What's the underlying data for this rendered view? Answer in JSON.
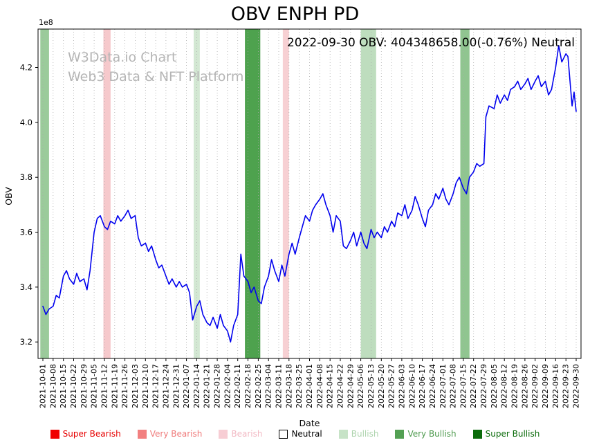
{
  "header": {
    "title": "OBV ENPH PD",
    "annotation": "2022-09-30 OBV: 404348658.00(-0.76%) Neutral"
  },
  "watermark": {
    "line1": "W3Data.io Chart",
    "line2": "Web3 Data & NFT Platform",
    "color": "#b5b5b5"
  },
  "axes": {
    "ylabel": "OBV",
    "xlabel": "Date",
    "offset_label": "1e8"
  },
  "chart_data": {
    "type": "line",
    "title": "OBV ENPH PD",
    "annotation": "2022-09-30 OBV: 404348658.00(-0.76%) Neutral",
    "xlabel": "Date",
    "ylabel": "OBV",
    "y_unit_multiplier": "1e8",
    "ylim": [
      3.14,
      4.34
    ],
    "y_ticks": [
      3.2,
      3.4,
      3.6,
      3.8,
      4.0,
      4.2
    ],
    "grid": "vertical-dotted",
    "line_color": "#0000ee",
    "x_tick_labels": [
      "2021-10-01",
      "2021-10-08",
      "2021-10-15",
      "2021-10-22",
      "2021-10-29",
      "2021-11-05",
      "2021-11-12",
      "2021-11-19",
      "2021-11-26",
      "2021-12-03",
      "2021-12-10",
      "2021-12-17",
      "2021-12-24",
      "2021-12-31",
      "2022-01-07",
      "2022-01-14",
      "2022-01-21",
      "2022-01-28",
      "2022-02-04",
      "2022-02-11",
      "2022-02-18",
      "2022-02-25",
      "2022-03-04",
      "2022-03-11",
      "2022-03-18",
      "2022-03-25",
      "2022-04-01",
      "2022-04-08",
      "2022-04-15",
      "2022-04-22",
      "2022-04-29",
      "2022-05-06",
      "2022-05-13",
      "2022-05-20",
      "2022-05-27",
      "2022-06-03",
      "2022-06-10",
      "2022-06-17",
      "2022-06-24",
      "2022-07-01",
      "2022-07-08",
      "2022-07-15",
      "2022-07-22",
      "2022-07-29",
      "2022-08-05",
      "2022-08-12",
      "2022-08-19",
      "2022-08-26",
      "2022-09-02",
      "2022-09-09",
      "2022-09-16",
      "2022-09-23",
      "2022-09-30"
    ],
    "series": [
      {
        "name": "OBV",
        "points": [
          [
            0.0,
            3.33
          ],
          [
            0.3,
            3.3
          ],
          [
            0.6,
            3.32
          ],
          [
            1.0,
            3.33
          ],
          [
            1.3,
            3.37
          ],
          [
            1.6,
            3.36
          ],
          [
            2.0,
            3.44
          ],
          [
            2.3,
            3.46
          ],
          [
            2.6,
            3.43
          ],
          [
            3.0,
            3.41
          ],
          [
            3.3,
            3.45
          ],
          [
            3.6,
            3.42
          ],
          [
            4.0,
            3.43
          ],
          [
            4.3,
            3.39
          ],
          [
            4.6,
            3.46
          ],
          [
            5.0,
            3.6
          ],
          [
            5.3,
            3.65
          ],
          [
            5.6,
            3.66
          ],
          [
            6.0,
            3.62
          ],
          [
            6.3,
            3.61
          ],
          [
            6.6,
            3.64
          ],
          [
            7.0,
            3.63
          ],
          [
            7.3,
            3.66
          ],
          [
            7.6,
            3.64
          ],
          [
            8.0,
            3.66
          ],
          [
            8.3,
            3.68
          ],
          [
            8.6,
            3.65
          ],
          [
            9.0,
            3.66
          ],
          [
            9.3,
            3.58
          ],
          [
            9.6,
            3.55
          ],
          [
            10.0,
            3.56
          ],
          [
            10.3,
            3.53
          ],
          [
            10.6,
            3.55
          ],
          [
            11.0,
            3.5
          ],
          [
            11.3,
            3.47
          ],
          [
            11.6,
            3.48
          ],
          [
            12.0,
            3.44
          ],
          [
            12.3,
            3.41
          ],
          [
            12.6,
            3.43
          ],
          [
            13.0,
            3.4
          ],
          [
            13.3,
            3.42
          ],
          [
            13.6,
            3.4
          ],
          [
            14.0,
            3.41
          ],
          [
            14.3,
            3.38
          ],
          [
            14.6,
            3.28
          ],
          [
            15.0,
            3.33
          ],
          [
            15.3,
            3.35
          ],
          [
            15.6,
            3.3
          ],
          [
            16.0,
            3.27
          ],
          [
            16.3,
            3.26
          ],
          [
            16.6,
            3.29
          ],
          [
            17.0,
            3.25
          ],
          [
            17.3,
            3.3
          ],
          [
            17.6,
            3.26
          ],
          [
            18.0,
            3.24
          ],
          [
            18.3,
            3.2
          ],
          [
            18.6,
            3.26
          ],
          [
            19.0,
            3.3
          ],
          [
            19.3,
            3.52
          ],
          [
            19.6,
            3.44
          ],
          [
            20.0,
            3.42
          ],
          [
            20.3,
            3.38
          ],
          [
            20.6,
            3.4
          ],
          [
            21.0,
            3.35
          ],
          [
            21.3,
            3.34
          ],
          [
            21.6,
            3.4
          ],
          [
            22.0,
            3.44
          ],
          [
            22.3,
            3.5
          ],
          [
            22.6,
            3.46
          ],
          [
            23.0,
            3.42
          ],
          [
            23.3,
            3.48
          ],
          [
            23.6,
            3.44
          ],
          [
            24.0,
            3.52
          ],
          [
            24.3,
            3.56
          ],
          [
            24.6,
            3.52
          ],
          [
            25.0,
            3.58
          ],
          [
            25.3,
            3.62
          ],
          [
            25.6,
            3.66
          ],
          [
            26.0,
            3.64
          ],
          [
            26.3,
            3.68
          ],
          [
            26.6,
            3.7
          ],
          [
            27.0,
            3.72
          ],
          [
            27.3,
            3.74
          ],
          [
            27.6,
            3.7
          ],
          [
            28.0,
            3.66
          ],
          [
            28.3,
            3.6
          ],
          [
            28.6,
            3.66
          ],
          [
            29.0,
            3.64
          ],
          [
            29.3,
            3.55
          ],
          [
            29.6,
            3.54
          ],
          [
            30.0,
            3.57
          ],
          [
            30.3,
            3.6
          ],
          [
            30.6,
            3.55
          ],
          [
            31.0,
            3.6
          ],
          [
            31.3,
            3.56
          ],
          [
            31.6,
            3.54
          ],
          [
            32.0,
            3.61
          ],
          [
            32.3,
            3.58
          ],
          [
            32.6,
            3.6
          ],
          [
            33.0,
            3.58
          ],
          [
            33.3,
            3.62
          ],
          [
            33.6,
            3.6
          ],
          [
            34.0,
            3.64
          ],
          [
            34.3,
            3.62
          ],
          [
            34.6,
            3.67
          ],
          [
            35.0,
            3.66
          ],
          [
            35.3,
            3.7
          ],
          [
            35.6,
            3.65
          ],
          [
            36.0,
            3.68
          ],
          [
            36.3,
            3.73
          ],
          [
            36.6,
            3.7
          ],
          [
            37.0,
            3.65
          ],
          [
            37.3,
            3.62
          ],
          [
            37.6,
            3.68
          ],
          [
            38.0,
            3.7
          ],
          [
            38.3,
            3.74
          ],
          [
            38.6,
            3.72
          ],
          [
            39.0,
            3.76
          ],
          [
            39.3,
            3.72
          ],
          [
            39.6,
            3.7
          ],
          [
            40.0,
            3.74
          ],
          [
            40.3,
            3.78
          ],
          [
            40.6,
            3.8
          ],
          [
            41.0,
            3.76
          ],
          [
            41.3,
            3.74
          ],
          [
            41.6,
            3.8
          ],
          [
            42.0,
            3.82
          ],
          [
            42.3,
            3.85
          ],
          [
            42.6,
            3.84
          ],
          [
            43.0,
            3.85
          ],
          [
            43.2,
            4.02
          ],
          [
            43.5,
            4.06
          ],
          [
            44.0,
            4.05
          ],
          [
            44.3,
            4.1
          ],
          [
            44.6,
            4.07
          ],
          [
            45.0,
            4.1
          ],
          [
            45.3,
            4.08
          ],
          [
            45.6,
            4.12
          ],
          [
            46.0,
            4.13
          ],
          [
            46.3,
            4.15
          ],
          [
            46.6,
            4.12
          ],
          [
            47.0,
            4.14
          ],
          [
            47.3,
            4.16
          ],
          [
            47.6,
            4.12
          ],
          [
            48.0,
            4.15
          ],
          [
            48.3,
            4.17
          ],
          [
            48.6,
            4.13
          ],
          [
            49.0,
            4.15
          ],
          [
            49.3,
            4.1
          ],
          [
            49.6,
            4.12
          ],
          [
            50.0,
            4.2
          ],
          [
            50.3,
            4.28
          ],
          [
            50.6,
            4.22
          ],
          [
            51.0,
            4.25
          ],
          [
            51.2,
            4.24
          ],
          [
            51.4,
            4.15
          ],
          [
            51.6,
            4.06
          ],
          [
            51.8,
            4.11
          ],
          [
            52.0,
            4.04
          ]
        ]
      }
    ],
    "bands": [
      {
        "start": -0.25,
        "end": 0.6,
        "label": "Very Bullish",
        "color": "rgba(34,139,34,0.45)"
      },
      {
        "start": 5.9,
        "end": 6.6,
        "label": "Very Bearish",
        "color": "rgba(230,100,110,0.35)"
      },
      {
        "start": 14.7,
        "end": 15.3,
        "label": "Bullish",
        "color": "rgba(110,180,110,0.30)"
      },
      {
        "start": 19.7,
        "end": 21.2,
        "label": "Very Bullish",
        "color": "rgba(34,139,34,0.80)"
      },
      {
        "start": 23.4,
        "end": 24.0,
        "label": "Bearish",
        "color": "rgba(230,100,110,0.30)"
      },
      {
        "start": 31.0,
        "end": 32.5,
        "label": "Bullish",
        "color": "rgba(110,180,110,0.45)"
      },
      {
        "start": 40.7,
        "end": 41.6,
        "label": "Very Bullish",
        "color": "rgba(34,139,34,0.50)"
      }
    ],
    "legend_position": "bottom"
  },
  "legend": {
    "items": [
      {
        "label": "Super Bearish",
        "color": "#f00000",
        "text_color": "#e60000"
      },
      {
        "label": "Very Bearish",
        "color": "#f28080",
        "text_color": "#ef7a7a"
      },
      {
        "label": "Bearish",
        "color": "#f7cdd4",
        "text_color": "#f2b9c3"
      },
      {
        "label": "Neutral",
        "color": "#ffffff",
        "text_color": "#000000",
        "border": "#000000"
      },
      {
        "label": "Bullish",
        "color": "#c7e3c7",
        "text_color": "#aed4ae"
      },
      {
        "label": "Very Bullish",
        "color": "#53a053",
        "text_color": "#4d9a4d"
      },
      {
        "label": "Super Bullish",
        "color": "#0a6b0a",
        "text_color": "#0a6b0a"
      }
    ]
  }
}
